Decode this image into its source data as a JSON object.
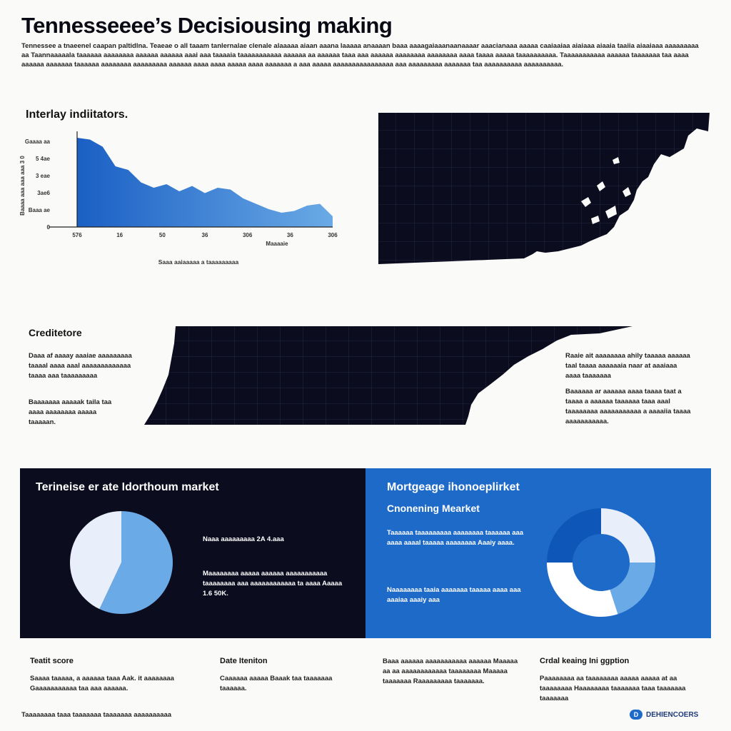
{
  "header": {
    "title": "Tennesseeee’s Decisiousing making",
    "intro": "Tennessee a tnaeenel caapan paltidlna. Teaeae o all taaam tanlernalae clenale alaaaaa aiaan aaana laaaaa anaaaan baaa aaaagaiaaanaanaaaar aaacianaaa aaaaa caaiaaiaa aiaiaaa aiaaia taaiia aiaaiaaa aaaaaaaaa aa Taannaaaaala taaaaaa aaaaaaaa aaaaaa aaaaaa aaai aaa taaaaia taaaaaaaaaaa aaaaaa aa aaaaaa taaa aaa aaaaaa aaaaaaaa aaaaaaaa aaaa taaaa aaaaa taaaaaaaaaa. Taaaaaaaaaaa aaaaaa taaaaaaa taa aaaa aaaaaa aaaaaaa taaaaaa aaaaaaaa aaaaaaaaa aaaaaa aaaa aaaa aaaaa aaaa aaaaaaa a aaa aaaaa aaaaaaaaaaaaaaaa aaa aaaaaaaaa aaaaaaa taa aaaaaaaaaa aaaaaaaaaa."
  },
  "indicators": {
    "heading": "Interlay indiitators.",
    "chart_data": {
      "type": "area",
      "x": [
        0,
        5,
        10,
        15,
        20,
        25,
        30,
        35,
        40,
        45,
        50,
        55,
        60,
        65,
        70,
        75,
        80,
        85,
        90,
        95,
        100
      ],
      "values": [
        5.0,
        4.9,
        4.5,
        3.4,
        3.2,
        2.5,
        2.2,
        2.4,
        2.0,
        2.3,
        1.9,
        2.2,
        2.1,
        1.6,
        1.3,
        1.0,
        0.8,
        0.9,
        1.2,
        1.3,
        0.6
      ],
      "y_tick_labels": [
        "Gaaaa aa",
        "5 4ae",
        "3 eae",
        "3ae6",
        "Baaa ae",
        "0"
      ],
      "x_tick_labels": [
        "576",
        "16",
        "50",
        "36",
        "306",
        "36",
        "306"
      ],
      "ylabel": "Baaaa aaa aaa aaa 3 0",
      "xlabel": "Maaaaie",
      "caption": "Saaa aaiaaaaa a taaaaaaaaa",
      "ylim": [
        0,
        5.2
      ],
      "colors": {
        "area_top": "#1a5fc4",
        "area_bottom": "#6aaae6",
        "axis": "#222222"
      }
    }
  },
  "credit": {
    "heading": "Creditetore",
    "note_1": "Daaa af aaaay aaaiae aaaaaaaaa taaaal aaaa aaal aaaaaaaaaaaaa taaaa aaa taaaaaaaaa",
    "note_2": "Baaaaaaa aaaaak taila taa aaaa aaaaaaaa aaaaa taaaaan."
  },
  "right_notes": {
    "note_1": "Raaie ait aaaaaaaa ahily taaaaa aaaaaa taal taaaa aaaaaaia naar at aaaiaaa aaaa taaaaaaa",
    "note_2": "Baaaaaa ar aaaaaa aaaa taaaa taat a taaaa a aaaaaa taaaaaa taaa aaal taaaaaaaa aaaaaaaaaaa a aaaaiia taaaa aaaaaaaaaaa."
  },
  "panel_left": {
    "title": "Terineise er ate Idorthoum market",
    "stat_1": "Naaa aaaaaaaaa 2A 4.aaa",
    "stat_2": "Maaaaaaaa aaaaa aaaaaa aaaaaaaaaaa taaaaaaaa aaa aaaaaaaaaaaa ta aaaa Aaaaa 1.6 50K.",
    "pie": {
      "values": [
        57,
        43
      ],
      "colors": [
        "#6aaae6",
        "#e9eefb"
      ]
    }
  },
  "panel_right": {
    "title": "Mortgeage ihonoeplirket",
    "subtitle": "Cnonening Mearket",
    "text_1": "Taaaaaa taaaaaaaaa aaaaaaaa taaaaaa aaa aaaa aaaal taaaaa aaaaaaaa Aaaiy aaaa.",
    "text_2": "Naaaaaaaa taaia aaaaaaa taaaaa aaaa aaa aaaiaa aaaiy aaa",
    "donut": {
      "values": [
        25,
        20,
        30,
        25
      ],
      "colors": [
        "#e9eefb",
        "#6aaae6",
        "#ffffff",
        "#0e57b8"
      ]
    }
  },
  "footer_cols": [
    {
      "heading": "Teatit score",
      "text": "Saaaa taaaaa, a aaaaaa taaa Aak. it aaaaaaaa Gaaaaaaaaaaa taa aaa aaaaaa."
    },
    {
      "heading": "Date Iteniton",
      "text": "Caaaaaa aaaaa Baaak taa taaaaaaa taaaaaa."
    },
    {
      "heading": "",
      "text": "Baaa aaaaaa aaaaaaaaaaa aaaaaa Maaaaa aa aa aaaaaaaaaaaa taaaaaaaa Maaaaa taaaaaaa Raaaaaaaaa taaaaaaa."
    },
    {
      "heading": "Crdal keaing Ini ggption",
      "text": "Paaaaaaaa aa taaaaaaaa aaaaa aaaaa at aa taaaaaaaa Haaaaaaaa taaaaaaa taaa taaaaaaa taaaaaaa"
    }
  ],
  "footer": {
    "left_text": "Taaaaaaaa taaa taaaaaaa taaaaaaa aaaaaaaaaa",
    "brand_name": "DEHIENCOERS",
    "brand_icon": "brand-logo-icon"
  },
  "colors": {
    "navy": "#0b0c1e",
    "blue": "#1e6ac8",
    "light_blue": "#6aaae6",
    "pale": "#e9eefb"
  }
}
